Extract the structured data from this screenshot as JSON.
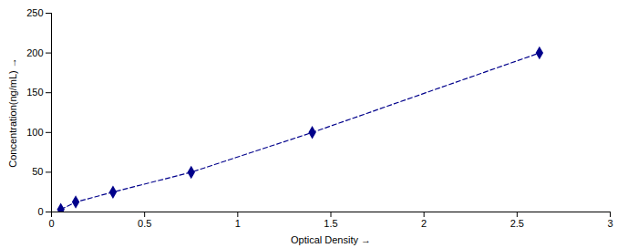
{
  "chart_data": {
    "type": "line",
    "xlabel": "Optical Density",
    "ylabel": "Concentration(ng/mL)",
    "x": [
      0.05,
      0.13,
      0.33,
      0.75,
      1.4,
      2.62
    ],
    "values": [
      3.125,
      12.5,
      25,
      50,
      100,
      200
    ],
    "color": "#00008B",
    "marker": "diamond",
    "line_style": "dashed",
    "xlim": [
      0,
      3
    ],
    "ylim": [
      0,
      250
    ],
    "xticks": [
      0,
      0.5,
      1,
      1.5,
      2,
      2.5,
      3
    ],
    "yticks": [
      0,
      50,
      100,
      150,
      200,
      250
    ],
    "grid": false
  }
}
